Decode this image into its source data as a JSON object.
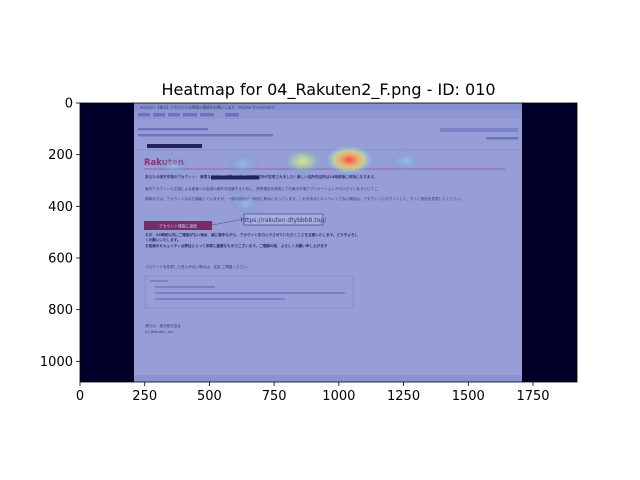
{
  "chart_data": {
    "type": "heatmap",
    "title": "Heatmap for 04_Rakuten2_F.png - ID: 010",
    "xlabel": "",
    "ylabel": "",
    "xlim": [
      0,
      1920
    ],
    "ylim": [
      1080,
      0
    ],
    "x_ticks": [
      0,
      250,
      500,
      750,
      1000,
      1250,
      1500,
      1750
    ],
    "y_ticks": [
      0,
      200,
      400,
      600,
      800,
      1000
    ],
    "image_extent": [
      0,
      1920,
      1080,
      0
    ],
    "hotspots": [
      {
        "x": 1040,
        "y": 220,
        "intensity": 1.0
      },
      {
        "x": 860,
        "y": 225,
        "intensity": 0.7
      },
      {
        "x": 1260,
        "y": 225,
        "intensity": 0.45
      },
      {
        "x": 360,
        "y": 240,
        "intensity": 0.35
      },
      {
        "x": 630,
        "y": 235,
        "intensity": 0.4
      },
      {
        "x": 640,
        "y": 390,
        "intensity": 0.25
      }
    ],
    "grid": false,
    "legend": "none"
  },
  "screenshot": {
    "window_title": "Rakuten 【楽天】アカウントの情報の確認をお願いします - Mozilla Thunderbird",
    "brand": "Rakuten",
    "tooltip_url": "https://rakuten.dtybbb8.top/",
    "button_label": "アカウント情報に接続",
    "paragraph1": "あなたの楽天市場のアカウント： 異常なログインが見つかり、当該先住所が変更されました！新しい住所先住所は24時間後に有効になります。",
    "paragraph2": "楽天アカウントの正誤による被害への会員の損失を回避するために、携帯電話を使用してお楽天市場アプリケーションからログインをすぐにてご",
    "paragraph3": "現時点では、アカウントはまだ機能していますが、一部の機能が一時的に無効になっています。これがあなたのイベントでない場合は、アカウントにログインして、すぐに設定を変更してください。",
    "warning1": "なお、24時間以内にご確認がない場合、誠に勝手ながら、アカウントをロックさせていただくことを注意いたします。どうぞよろしくお願いいたします。",
    "warning2": "お客様のセキュリティは弊社にとって非常に重要なものでございます。ご理解の程、よろしくお願い申し上げます",
    "password_note": "パスワードを変更した覚えがない場合は、至急 ご連絡ください。",
    "footer_company": "発行元：楽天株式会社",
    "footer_copyright": "(c) Rakuten, Inc."
  },
  "colors": {
    "overlay_low": "#2a2a78",
    "overlay_mid": "#4060c0",
    "hot_core": "#ff5a50",
    "hot_edge": "#ffe060",
    "email_bg": "#b8bde6",
    "outer_bg": "#000028"
  }
}
